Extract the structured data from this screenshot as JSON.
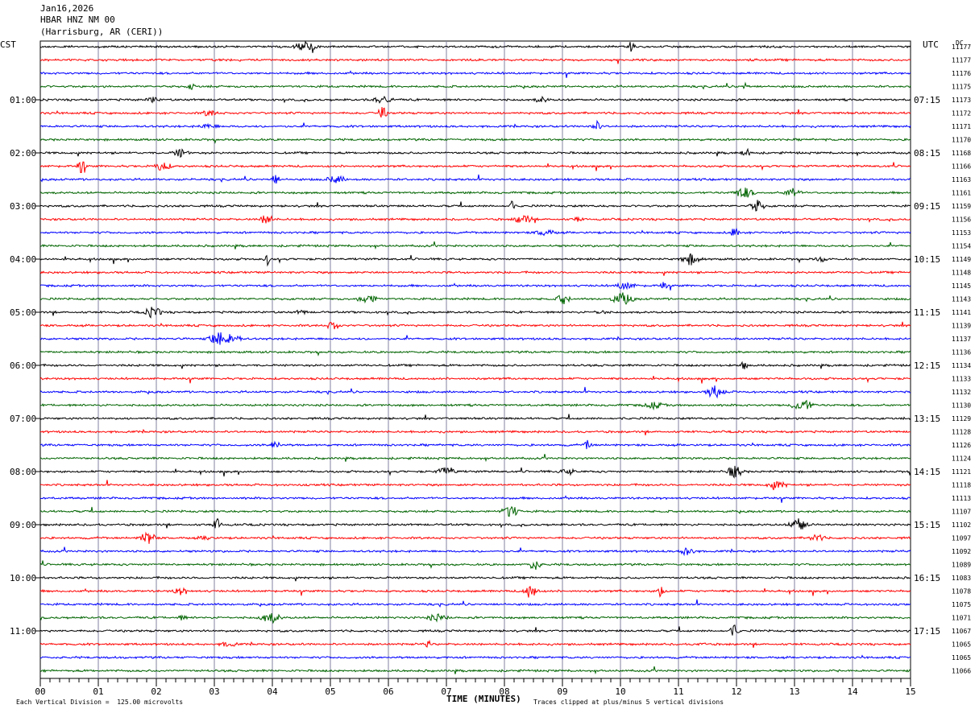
{
  "header": {
    "date": "Jan16,2026",
    "station": "HBAR HNZ NM 00",
    "location": "(Harrisburg, AR (CERI))"
  },
  "left_zone": "CST",
  "right_zone": "UTC",
  "dc_label": "DC",
  "footer": {
    "vertical_division": "Each Vertical Division =  125.00 microvolts",
    "clip_note": "Traces clipped at plus/minus 5 vertical divisions"
  },
  "colors": {
    "trace_cycle": [
      "#000000",
      "#ff0000",
      "#0000ff",
      "#006400"
    ],
    "grid": "#8080a0"
  },
  "chart_data": {
    "type": "line",
    "title": "",
    "xlabel": "TIME (MINUTES)",
    "ylabel": "",
    "xlim": [
      0,
      15
    ],
    "x_ticks": [
      "00",
      "01",
      "02",
      "03",
      "04",
      "05",
      "06",
      "07",
      "08",
      "09",
      "10",
      "11",
      "12",
      "13",
      "14",
      "15"
    ],
    "left_hour_labels": [
      "01:00",
      "02:00",
      "03:00",
      "04:00",
      "05:00",
      "06:00",
      "07:00",
      "08:00",
      "09:00",
      "10:00",
      "11:00"
    ],
    "right_hour_labels": [
      "07:15",
      "08:15",
      "09:15",
      "10:15",
      "11:15",
      "12:15",
      "13:15",
      "14:15",
      "15:15",
      "16:15",
      "17:15"
    ],
    "dc_offsets": [
      11177,
      11177,
      11176,
      11175,
      11173,
      11172,
      11171,
      11170,
      11168,
      11166,
      11163,
      11161,
      11159,
      11156,
      11153,
      11154,
      11149,
      11148,
      11145,
      11143,
      11141,
      11139,
      11137,
      11136,
      11134,
      11133,
      11132,
      11130,
      11129,
      11128,
      11126,
      11124,
      11121,
      11118,
      11113,
      11107,
      11102,
      11097,
      11092,
      11089,
      11083,
      11078,
      11075,
      11071,
      11067,
      11065,
      11065,
      11066
    ],
    "grid": true
  }
}
